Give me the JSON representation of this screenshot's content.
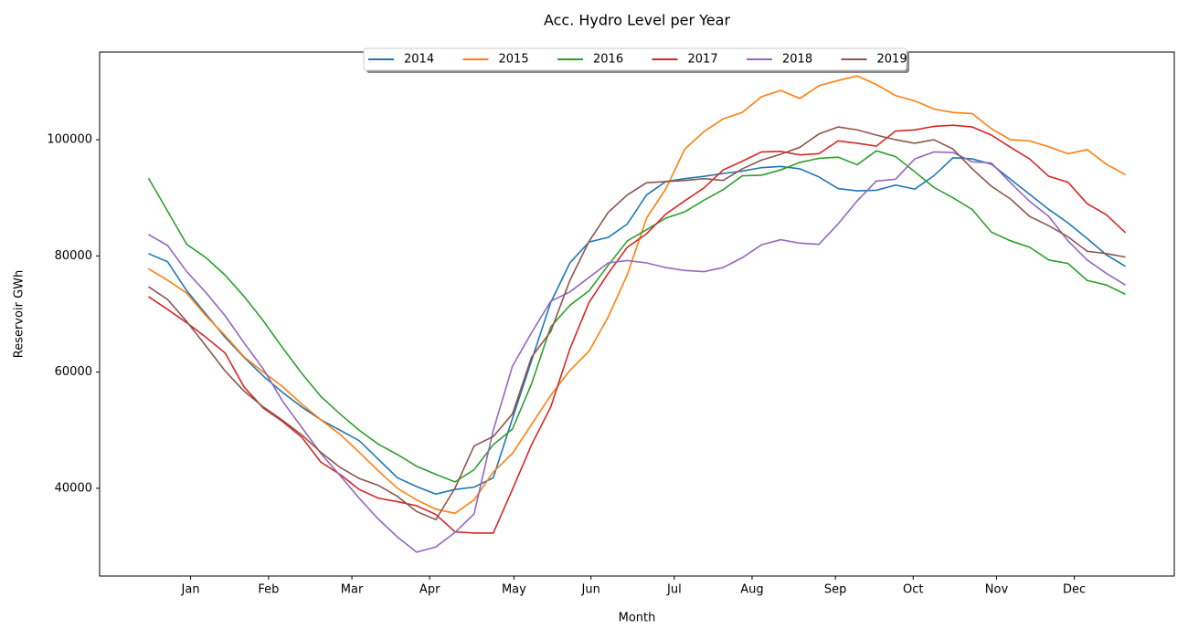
{
  "chart_data": {
    "type": "line",
    "title": "Acc. Hydro Level per Year",
    "x_label": "Month",
    "y_label": "Reservoir GWh",
    "x": [
      1,
      2,
      3,
      4,
      5,
      6,
      7,
      8,
      9,
      10,
      11,
      12,
      13,
      14,
      15,
      16,
      17,
      18,
      19,
      20,
      21,
      22,
      23,
      24,
      25,
      26,
      27,
      28,
      29,
      30,
      31,
      32,
      33,
      34,
      35,
      36,
      37,
      38,
      39,
      40,
      41,
      42,
      43,
      44,
      45,
      46,
      47,
      48,
      49,
      50,
      51,
      52
    ],
    "xlim": [
      -1.55,
      54.55
    ],
    "xticks": [
      {
        "value": 3.2,
        "label": "Jan"
      },
      {
        "value": 7.27,
        "label": "Feb"
      },
      {
        "value": 11.62,
        "label": "Mar"
      },
      {
        "value": 15.68,
        "label": "Apr"
      },
      {
        "value": 20.08,
        "label": "May"
      },
      {
        "value": 24.1,
        "label": "Jun"
      },
      {
        "value": 28.45,
        "label": "Jul"
      },
      {
        "value": 32.51,
        "label": "Aug"
      },
      {
        "value": 36.86,
        "label": "Sep"
      },
      {
        "value": 40.92,
        "label": "Oct"
      },
      {
        "value": 45.27,
        "label": "Nov"
      },
      {
        "value": 49.33,
        "label": "Dec"
      }
    ],
    "ylim": [
      24900,
      115100
    ],
    "yticks": [
      40000,
      60000,
      80000,
      100000
    ],
    "grid": false,
    "legend_position": "upper center",
    "series": [
      {
        "name": "2014",
        "color": "#1f77b4",
        "values": [
          80400,
          79000,
          74000,
          70000,
          66000,
          62500,
          59300,
          56500,
          54000,
          51800,
          50000,
          48200,
          45000,
          41800,
          40300,
          39000,
          39800,
          40200,
          41800,
          52000,
          62000,
          72000,
          78800,
          82400,
          83200,
          85500,
          90500,
          92800,
          93300,
          93700,
          94200,
          94600,
          95200,
          95400,
          95000,
          93600,
          91600,
          91200,
          91300,
          92200,
          91500,
          93800,
          96900,
          96700,
          95800,
          93200,
          90600,
          88000,
          85700,
          83000,
          80200,
          78200
        ]
      },
      {
        "name": "2015",
        "color": "#ff7f0e",
        "values": [
          77800,
          75800,
          73600,
          69700,
          66300,
          62600,
          60000,
          57500,
          54500,
          51800,
          49300,
          46200,
          43000,
          40000,
          38000,
          36400,
          35700,
          38000,
          42800,
          46000,
          51000,
          56000,
          60300,
          63600,
          69500,
          76800,
          86500,
          91500,
          98400,
          101400,
          103600,
          104700,
          107400,
          108500,
          107100,
          109300,
          110200,
          111000,
          109500,
          107600,
          106700,
          105300,
          104700,
          104500,
          101900,
          100000,
          99800,
          98800,
          97600,
          98300,
          95800,
          94000
        ]
      },
      {
        "name": "2016",
        "color": "#2ca02c",
        "values": [
          93400,
          87700,
          82000,
          79700,
          76700,
          73000,
          68800,
          64200,
          59800,
          55800,
          52800,
          50000,
          47600,
          45800,
          43800,
          42400,
          41100,
          43200,
          47500,
          50200,
          58000,
          67800,
          71500,
          74000,
          78400,
          82600,
          84500,
          86500,
          87600,
          89600,
          91400,
          93800,
          93900,
          94800,
          96100,
          96800,
          97000,
          95700,
          98100,
          97100,
          94500,
          91800,
          90000,
          88000,
          84100,
          82600,
          81500,
          79300,
          78700,
          75800,
          75000,
          73400
        ]
      },
      {
        "name": "2017",
        "color": "#d62728",
        "values": [
          73000,
          70800,
          68500,
          66000,
          63300,
          57400,
          53800,
          51500,
          48800,
          44500,
          42400,
          39800,
          38300,
          37700,
          37000,
          35500,
          32500,
          32300,
          32300,
          39800,
          47500,
          54000,
          64000,
          72000,
          77000,
          81500,
          83800,
          87200,
          89500,
          91700,
          94800,
          96300,
          97900,
          98000,
          97400,
          97600,
          99800,
          99400,
          98900,
          101500,
          101700,
          102300,
          102500,
          102200,
          100800,
          98700,
          96700,
          93700,
          92700,
          89000,
          87100,
          84000
        ]
      },
      {
        "name": "2018",
        "color": "#9467bd",
        "values": [
          83700,
          81800,
          77300,
          73700,
          69700,
          65000,
          60500,
          55000,
          50500,
          46000,
          42200,
          38300,
          34700,
          31600,
          29000,
          29900,
          32400,
          35600,
          50000,
          61000,
          66800,
          72200,
          73800,
          76300,
          78800,
          79200,
          78800,
          78000,
          77500,
          77300,
          78000,
          79700,
          81900,
          82800,
          82200,
          82000,
          85500,
          89500,
          92900,
          93200,
          96700,
          97900,
          97800,
          96200,
          96000,
          92600,
          89400,
          86800,
          82600,
          79300,
          77000,
          75000
        ]
      },
      {
        "name": "2019",
        "color": "#8c564b",
        "values": [
          74700,
          72500,
          68700,
          64500,
          60200,
          56700,
          54000,
          51700,
          49200,
          46200,
          43600,
          41700,
          40500,
          38600,
          36000,
          34600,
          40000,
          47300,
          48900,
          52800,
          62600,
          67000,
          75800,
          82500,
          87500,
          90500,
          92600,
          92800,
          93000,
          93300,
          93000,
          95000,
          96500,
          97500,
          98700,
          101000,
          102200,
          101700,
          100800,
          100000,
          99400,
          100000,
          98400,
          95000,
          92000,
          89800,
          86800,
          85200,
          83300,
          80800,
          80400,
          79800
        ]
      }
    ]
  }
}
